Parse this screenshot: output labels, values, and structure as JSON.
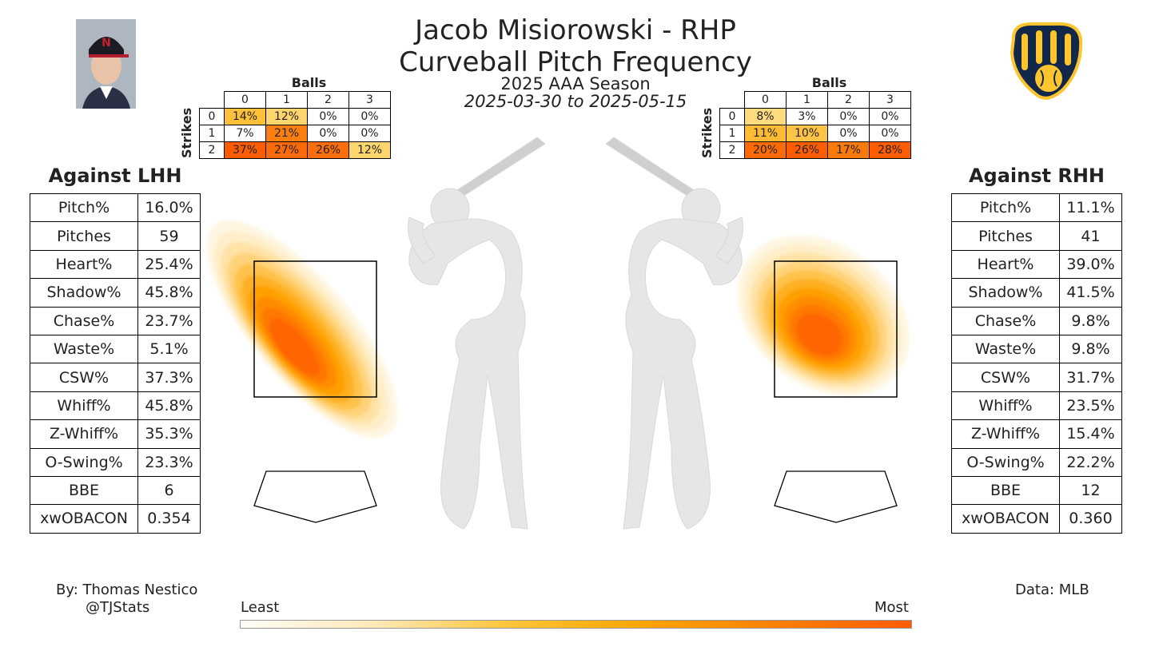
{
  "header": {
    "title": "Jacob Misiorowski - RHP",
    "subtitle": "Curveball Pitch Frequency",
    "season": "2025 AAA Season",
    "date_range": "2025-03-30 to 2025-05-15"
  },
  "count_labels": {
    "balls": "Balls",
    "strikes": "Strikes"
  },
  "lhh": {
    "heading": "Against LHH",
    "ball_headers": [
      "0",
      "1",
      "2",
      "3"
    ],
    "strike_headers": [
      "0",
      "1",
      "2"
    ],
    "counts": [
      [
        "14%",
        "12%",
        "0%",
        "0%"
      ],
      [
        "7%",
        "21%",
        "0%",
        "0%"
      ],
      [
        "37%",
        "27%",
        "26%",
        "12%"
      ]
    ],
    "count_colors": [
      [
        "#fcc03a",
        "#ffd56e",
        "#ffffff",
        "#ffffff"
      ],
      [
        "#ffffff",
        "#fb7f10",
        "#ffffff",
        "#ffffff"
      ],
      [
        "#ff5c00",
        "#fb6a0a",
        "#fc6e0b",
        "#ffd56e"
      ]
    ],
    "stats": [
      {
        "k": "Pitch%",
        "v": "16.0%"
      },
      {
        "k": "Pitches",
        "v": "59"
      },
      {
        "k": "Heart%",
        "v": "25.4%"
      },
      {
        "k": "Shadow%",
        "v": "45.8%"
      },
      {
        "k": "Chase%",
        "v": "23.7%"
      },
      {
        "k": "Waste%",
        "v": "5.1%"
      },
      {
        "k": "CSW%",
        "v": "37.3%"
      },
      {
        "k": "Whiff%",
        "v": "45.8%"
      },
      {
        "k": "Z-Whiff%",
        "v": "35.3%"
      },
      {
        "k": "O-Swing%",
        "v": "23.3%"
      },
      {
        "k": "BBE",
        "v": "6"
      },
      {
        "k": "xwOBACON",
        "v": "0.354"
      }
    ]
  },
  "rhh": {
    "heading": "Against RHH",
    "ball_headers": [
      "0",
      "1",
      "2",
      "3"
    ],
    "strike_headers": [
      "0",
      "1",
      "2"
    ],
    "counts": [
      [
        "8%",
        "3%",
        "0%",
        "0%"
      ],
      [
        "11%",
        "10%",
        "0%",
        "0%"
      ],
      [
        "20%",
        "26%",
        "17%",
        "28%"
      ]
    ],
    "count_colors": [
      [
        "#ffdb80",
        "#ffffff",
        "#ffffff",
        "#ffffff"
      ],
      [
        "#ffbb33",
        "#ffc347",
        "#ffffff",
        "#ffffff"
      ],
      [
        "#fd6a06",
        "#ff5d00",
        "#fb7a0c",
        "#ff5c00"
      ]
    ],
    "stats": [
      {
        "k": "Pitch%",
        "v": "11.1%"
      },
      {
        "k": "Pitches",
        "v": "41"
      },
      {
        "k": "Heart%",
        "v": "39.0%"
      },
      {
        "k": "Shadow%",
        "v": "41.5%"
      },
      {
        "k": "Chase%",
        "v": "9.8%"
      },
      {
        "k": "Waste%",
        "v": "9.8%"
      },
      {
        "k": "CSW%",
        "v": "31.7%"
      },
      {
        "k": "Whiff%",
        "v": "23.5%"
      },
      {
        "k": "Z-Whiff%",
        "v": "15.4%"
      },
      {
        "k": "O-Swing%",
        "v": "22.2%"
      },
      {
        "k": "BBE",
        "v": "12"
      },
      {
        "k": "xwOBACON",
        "v": "0.360"
      }
    ]
  },
  "footer": {
    "by": "By: Thomas Nestico",
    "handle": "@TJStats",
    "data": "Data: MLB",
    "least": "Least",
    "most": "Most"
  },
  "colors": {
    "low": "#fffdf6",
    "mid": "#ffa500",
    "high": "#ff5c00"
  },
  "chart_data": {
    "type": "heatmap",
    "title": "Curveball Pitch Frequency",
    "series": [
      {
        "name": "Against LHH",
        "levels": 10
      },
      {
        "name": "Against RHH",
        "levels": 10
      }
    ],
    "colorbar": {
      "low_label": "Least",
      "high_label": "Most"
    }
  }
}
